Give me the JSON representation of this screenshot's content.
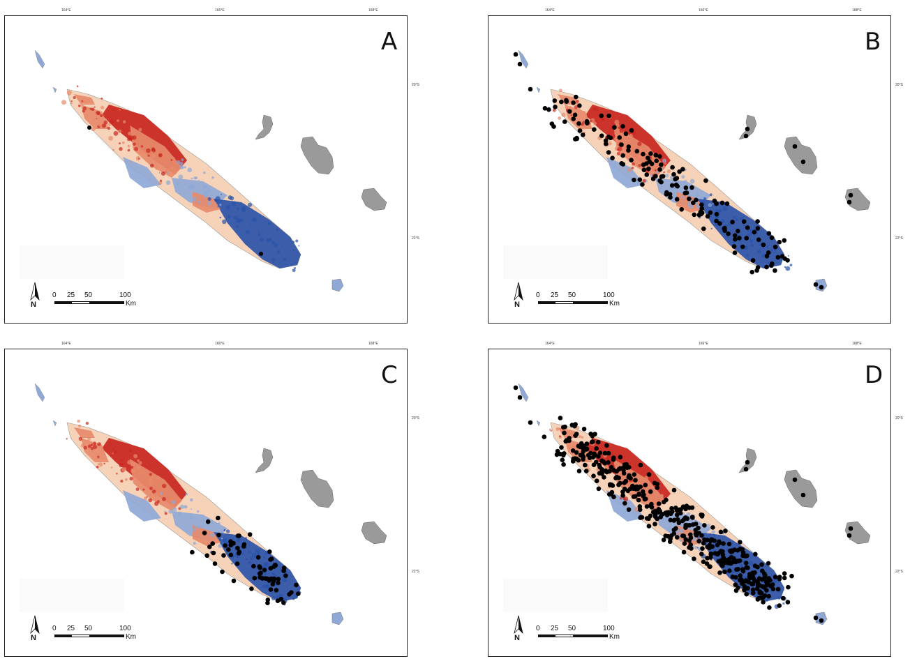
{
  "panels": [
    {
      "letter": "A",
      "points": "none"
    },
    {
      "letter": "B",
      "points": "sparse"
    },
    {
      "letter": "C",
      "points": "south"
    },
    {
      "letter": "D",
      "points": "dense"
    }
  ],
  "longitude_ticks": [
    "164°E",
    "166°E",
    "168°E"
  ],
  "latitude_ticks": [
    "20°S",
    "22°S"
  ],
  "scale_bar": {
    "labels": [
      "0",
      "25",
      "50",
      "100"
    ],
    "unit": "Km"
  },
  "north_label": "N",
  "colors": {
    "high": "#c8261e",
    "mid_high": "#e78a6b",
    "neutral": "#f6d2b8",
    "mid_low": "#8fa8d6",
    "low": "#2a52a8",
    "islands": "#9a9a9a",
    "points": "#000000"
  }
}
